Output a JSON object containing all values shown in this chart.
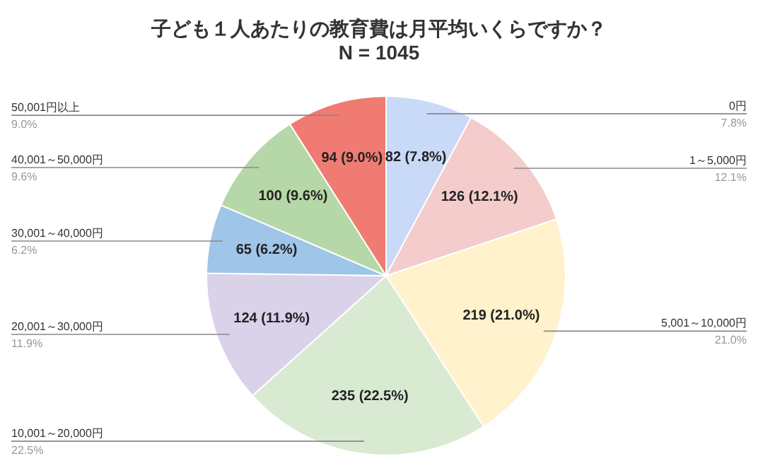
{
  "chart_data": {
    "type": "pie",
    "title": "子ども１人あたりの教育費は月平均いくらですか？",
    "subtitle": "N = 1045",
    "categories": [
      "0円",
      "1～5,000円",
      "5,001～10,000円",
      "10,001～20,000円",
      "20,001～30,000円",
      "30,001～40,000円",
      "40,001～50,000円",
      "50,001円以上"
    ],
    "values": [
      82,
      126,
      219,
      235,
      124,
      65,
      100,
      94
    ],
    "colors": [
      "#c9daf8",
      "#f4cccc",
      "#fff2cc",
      "#d9ead3",
      "#d9d2e9",
      "#9fc5e8",
      "#b6d7a8",
      "#f07b72"
    ],
    "value_labels": [
      "82 (7.8%)",
      "126 (12.1%)",
      "219 (21.0%)",
      "235 (22.5%)",
      "124 (11.9%)",
      "65 (6.2%)",
      "100 (9.6%)",
      "94 (9.0%)"
    ],
    "annotations": [
      "7.8%",
      "12.1%",
      "21.0%",
      "22.5%",
      "11.9%",
      "6.2%",
      "9.6%",
      "9.0%"
    ],
    "legend": false
  }
}
